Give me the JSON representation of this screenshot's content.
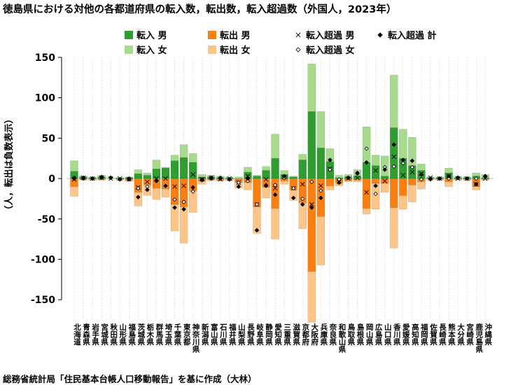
{
  "title": "徳島県における対他の各都道府県の転入数，転出数，転入超過数（外国人，2023年）",
  "source": "総務省統計局「住民基本台帳人口移動報告」を基に作成（大林）",
  "colors": {
    "in_male": "#2e9e2e",
    "in_female": "#a6db8c",
    "out_male": "#ff7f0e",
    "out_female": "#ffc586",
    "marker": "#000000",
    "guide": "#c8c8c8",
    "zero": "#bdbdbd"
  },
  "chart_data": {
    "type": "bar",
    "ylabel": "（人，転出は負数表示）",
    "ylim": [
      -175,
      150
    ],
    "yticks": [
      -150,
      -100,
      -50,
      0,
      50,
      100,
      150
    ],
    "legend_position": "top",
    "legend": [
      {
        "name": "転入 男",
        "marker": "square",
        "color": "#2e9e2e"
      },
      {
        "name": "転入 女",
        "marker": "square",
        "color": "#a6db8c"
      },
      {
        "name": "転出 男",
        "marker": "square",
        "color": "#ff7f0e"
      },
      {
        "name": "転出 女",
        "marker": "square",
        "color": "#ffc586"
      },
      {
        "name": "転入超過 男",
        "marker": "x",
        "color": "#000000"
      },
      {
        "name": "転入超過 女",
        "marker": "diamond-open",
        "color": "#000000"
      },
      {
        "name": "転入超過 計",
        "marker": "diamond",
        "color": "#000000"
      }
    ],
    "categories": [
      "北海道",
      "青森県",
      "岩手県",
      "宮城県",
      "秋田県",
      "山形県",
      "福島県",
      "茨城県",
      "栃木県",
      "群馬県",
      "埼玉県",
      "千葉県",
      "東京都",
      "神奈川県",
      "新潟県",
      "富山県",
      "石川県",
      "福井県",
      "山梨県",
      "長野県",
      "岐阜県",
      "静岡県",
      "愛知県",
      "三重県",
      "滋賀県",
      "京都府",
      "大阪府",
      "兵庫県",
      "奈良県",
      "和歌山県",
      "鳥取県",
      "島根県",
      "岡山県",
      "広島県",
      "山口県",
      "香川県",
      "愛媛県",
      "高知県",
      "福岡県",
      "佐賀県",
      "長崎県",
      "熊本県",
      "大分県",
      "宮崎県",
      "鹿児島県",
      "沖縄県"
    ],
    "series": [
      {
        "name": "転入 男",
        "values": [
          9,
          2,
          1,
          2,
          0,
          1,
          1,
          6,
          4,
          12,
          13,
          22,
          26,
          20,
          2,
          2,
          1,
          1,
          0,
          8,
          3,
          10,
          25,
          5,
          2,
          23,
          83,
          38,
          21,
          1,
          2,
          3,
          20,
          16,
          3,
          63,
          25,
          16,
          10,
          1,
          1,
          7,
          1,
          1,
          3,
          1
        ]
      },
      {
        "name": "転入 女",
        "values": [
          13,
          1,
          1,
          2,
          1,
          0,
          1,
          5,
          3,
          11,
          1,
          7,
          16,
          11,
          3,
          2,
          2,
          1,
          2,
          6,
          1,
          5,
          30,
          5,
          1,
          7,
          59,
          45,
          16,
          3,
          3,
          8,
          44,
          13,
          25,
          65,
          36,
          35,
          8,
          1,
          1,
          6,
          2,
          1,
          4,
          4
        ]
      },
      {
        "name": "転出 男",
        "values": [
          10,
          1,
          1,
          1,
          0,
          1,
          2,
          17,
          8,
          12,
          13,
          32,
          35,
          15,
          3,
          1,
          2,
          1,
          5,
          5,
          35,
          11,
          37,
          3,
          14,
          30,
          115,
          47,
          9,
          5,
          2,
          2,
          37,
          6,
          6,
          36,
          21,
          8,
          4,
          0,
          1,
          4,
          1,
          1,
          10,
          1
        ]
      },
      {
        "name": "転出 女",
        "values": [
          12,
          1,
          1,
          1,
          0,
          1,
          1,
          17,
          13,
          14,
          10,
          33,
          45,
          27,
          4,
          2,
          1,
          2,
          7,
          9,
          33,
          13,
          38,
          4,
          13,
          32,
          63,
          60,
          5,
          4,
          2,
          2,
          7,
          32,
          11,
          50,
          17,
          21,
          9,
          2,
          1,
          6,
          1,
          1,
          4,
          1
        ]
      },
      {
        "name": "転入超過 男",
        "values": [
          -1,
          1,
          0,
          1,
          0,
          0,
          -1,
          -11,
          -4,
          0,
          0,
          -10,
          -9,
          5,
          -1,
          1,
          -1,
          0,
          -5,
          3,
          -32,
          -1,
          -12,
          2,
          -12,
          -7,
          -32,
          -9,
          12,
          -4,
          0,
          1,
          -17,
          10,
          -3,
          27,
          4,
          8,
          6,
          1,
          0,
          3,
          0,
          0,
          -7,
          0
        ]
      },
      {
        "name": "転入超過 女",
        "values": [
          1,
          0,
          0,
          1,
          1,
          -1,
          0,
          -12,
          -10,
          -3,
          -9,
          -26,
          -29,
          -16,
          -1,
          0,
          1,
          -1,
          -5,
          -3,
          -32,
          -8,
          -8,
          1,
          -12,
          -25,
          -4,
          -15,
          11,
          -1,
          1,
          6,
          37,
          -19,
          14,
          15,
          19,
          14,
          -1,
          -1,
          0,
          0,
          1,
          0,
          0,
          3
        ]
      },
      {
        "name": "転入超過 計",
        "values": [
          0,
          1,
          0,
          2,
          1,
          -1,
          -1,
          -23,
          -14,
          -3,
          -9,
          -36,
          -38,
          -11,
          -2,
          1,
          0,
          -1,
          -10,
          0,
          -64,
          -9,
          -20,
          3,
          -24,
          -32,
          -36,
          -24,
          23,
          -5,
          1,
          7,
          20,
          -9,
          11,
          42,
          23,
          22,
          5,
          0,
          0,
          3,
          1,
          0,
          -7,
          3
        ]
      }
    ]
  }
}
